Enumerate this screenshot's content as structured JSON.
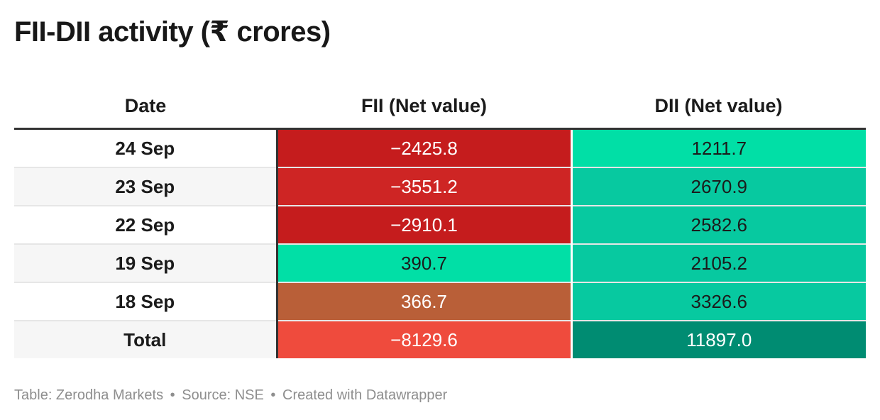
{
  "title": "FII-DII activity (₹ crores)",
  "footer": {
    "table_label": "Table: Zerodha Markets",
    "separator": "•",
    "source": "Source: NSE",
    "created": "Created with Datawrapper"
  },
  "colors": {
    "negative_strong": "#c51c1d",
    "negative_mid": "#ce2524",
    "negative_total": "#ef4b3d",
    "positive_bright": "#01dfa6",
    "positive_mid": "#07c9a0",
    "positive_total": "#008c72",
    "brownish": "#b95f38",
    "text_dark": "#1b1b1b",
    "text_light": "#ffffff"
  },
  "chart_data": {
    "type": "table",
    "title": "FII-DII activity (₹ crores)",
    "columns": [
      "Date",
      "FII (Net value)",
      "DII (Net value)"
    ],
    "rows": [
      {
        "date": "24 Sep",
        "fii": "−2425.8",
        "dii": "1211.7",
        "fii_color": "#c51c1d",
        "dii_color": "#01dfa6",
        "fii_text": "#ffffff",
        "dii_text": "#1b1b1b"
      },
      {
        "date": "23 Sep",
        "fii": "−3551.2",
        "dii": "2670.9",
        "fii_color": "#ce2524",
        "dii_color": "#07c9a0",
        "fii_text": "#ffffff",
        "dii_text": "#1b1b1b"
      },
      {
        "date": "22 Sep",
        "fii": "−2910.1",
        "dii": "2582.6",
        "fii_color": "#c51c1d",
        "dii_color": "#07c9a0",
        "fii_text": "#ffffff",
        "dii_text": "#1b1b1b"
      },
      {
        "date": "19 Sep",
        "fii": "390.7",
        "dii": "2105.2",
        "fii_color": "#01dfa6",
        "dii_color": "#07c9a0",
        "fii_text": "#1b1b1b",
        "dii_text": "#1b1b1b"
      },
      {
        "date": "18 Sep",
        "fii": "366.7",
        "dii": "3326.6",
        "fii_color": "#b95f38",
        "dii_color": "#07c9a0",
        "fii_text": "#ffffff",
        "dii_text": "#1b1b1b"
      },
      {
        "date": "Total",
        "fii": "−8129.6",
        "dii": "11897.0",
        "fii_color": "#ef4b3d",
        "dii_color": "#008c72",
        "fii_text": "#ffffff",
        "dii_text": "#ffffff"
      }
    ]
  }
}
